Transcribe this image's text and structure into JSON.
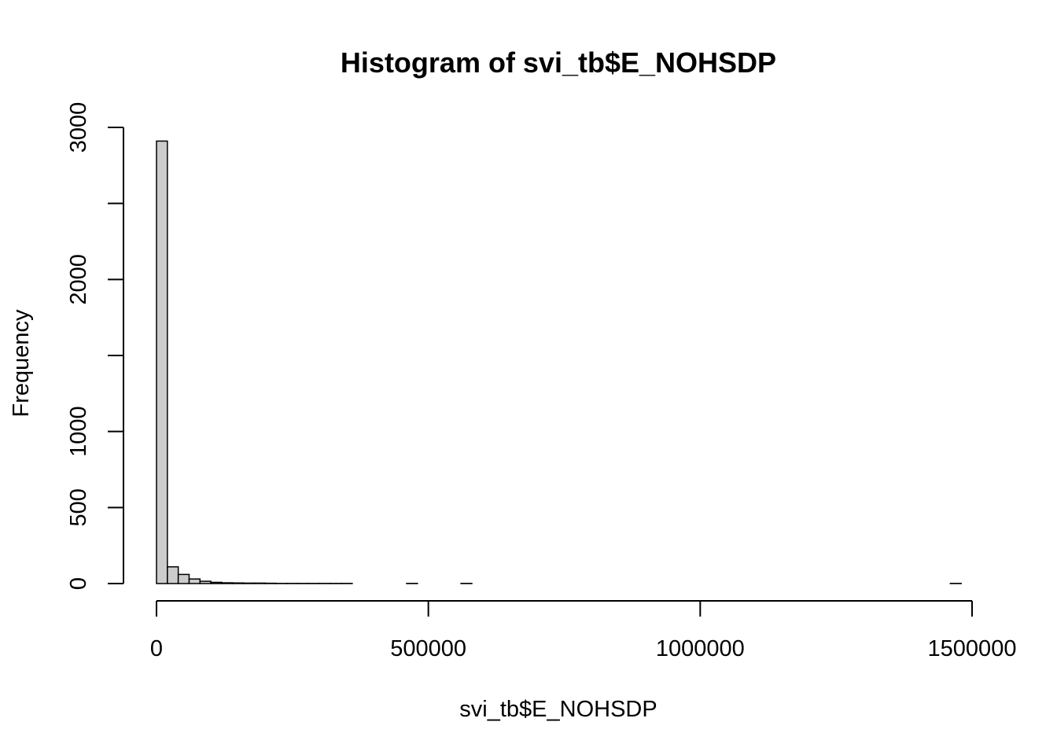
{
  "chart_data": {
    "type": "bar",
    "title": "Histogram of svi_tb$E_NOHSDP",
    "xlabel": "svi_tb$E_NOHSDP",
    "ylabel": "Frequency",
    "xlim": [
      0,
      1500000
    ],
    "ylim": [
      0,
      3000
    ],
    "bin_width": 20000,
    "bin_start": 0,
    "x_ticks": [
      0,
      500000,
      1000000,
      1500000
    ],
    "x_tick_labels": [
      "0",
      "500000",
      "1000000",
      "1500000"
    ],
    "y_ticks": [
      0,
      500,
      1000,
      1500,
      2000,
      2500,
      3000
    ],
    "y_tick_labels": [
      "0",
      "500",
      "1000",
      "",
      "2000",
      "",
      "3000"
    ],
    "bar_fill": "#cccccc",
    "bar_stroke": "#000000",
    "values": [
      2910,
      110,
      60,
      30,
      15,
      8,
      5,
      4,
      3,
      3,
      2,
      1,
      1,
      1,
      1,
      1,
      1,
      1,
      0,
      0,
      0,
      0,
      0,
      1,
      0,
      0,
      0,
      0,
      1,
      0,
      0,
      0,
      0,
      0,
      0,
      0,
      0,
      0,
      0,
      0,
      0,
      0,
      0,
      0,
      0,
      0,
      0,
      0,
      0,
      0,
      0,
      0,
      0,
      0,
      0,
      0,
      0,
      0,
      0,
      0,
      0,
      0,
      0,
      0,
      0,
      0,
      0,
      0,
      0,
      0,
      0,
      0,
      0,
      1
    ],
    "grid": false,
    "legend": "none"
  }
}
